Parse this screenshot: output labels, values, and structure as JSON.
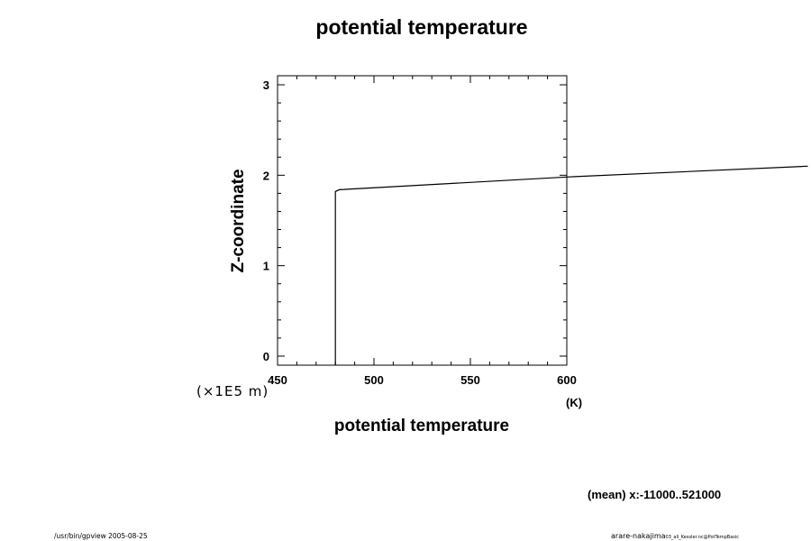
{
  "chart_data": {
    "type": "line",
    "title": "potential temperature",
    "xlabel": "potential temperature",
    "xunit": "(K)",
    "ylabel": "Z-coordinate",
    "yunit": "(×1E5 m)",
    "xlim": [
      450,
      600
    ],
    "ylim": [
      -0.1,
      3.1
    ],
    "x_ticks": [
      450,
      500,
      550,
      600
    ],
    "y_ticks": [
      0,
      1,
      2,
      3
    ],
    "grid": false,
    "series": [
      {
        "x": [
          480,
          480,
          482,
          600,
          725
        ],
        "y": [
          -0.1,
          1.82,
          1.84,
          1.98,
          2.1
        ]
      }
    ]
  },
  "annotations": {
    "mean_range": "(mean) x:-11000..521000",
    "footer_left": "/usr/bin/gpview 2005-08-25",
    "footer_right_main": "arare-nakajima",
    "footer_right_sub": "03_all_Kessler.nc@PotTempBasic"
  }
}
